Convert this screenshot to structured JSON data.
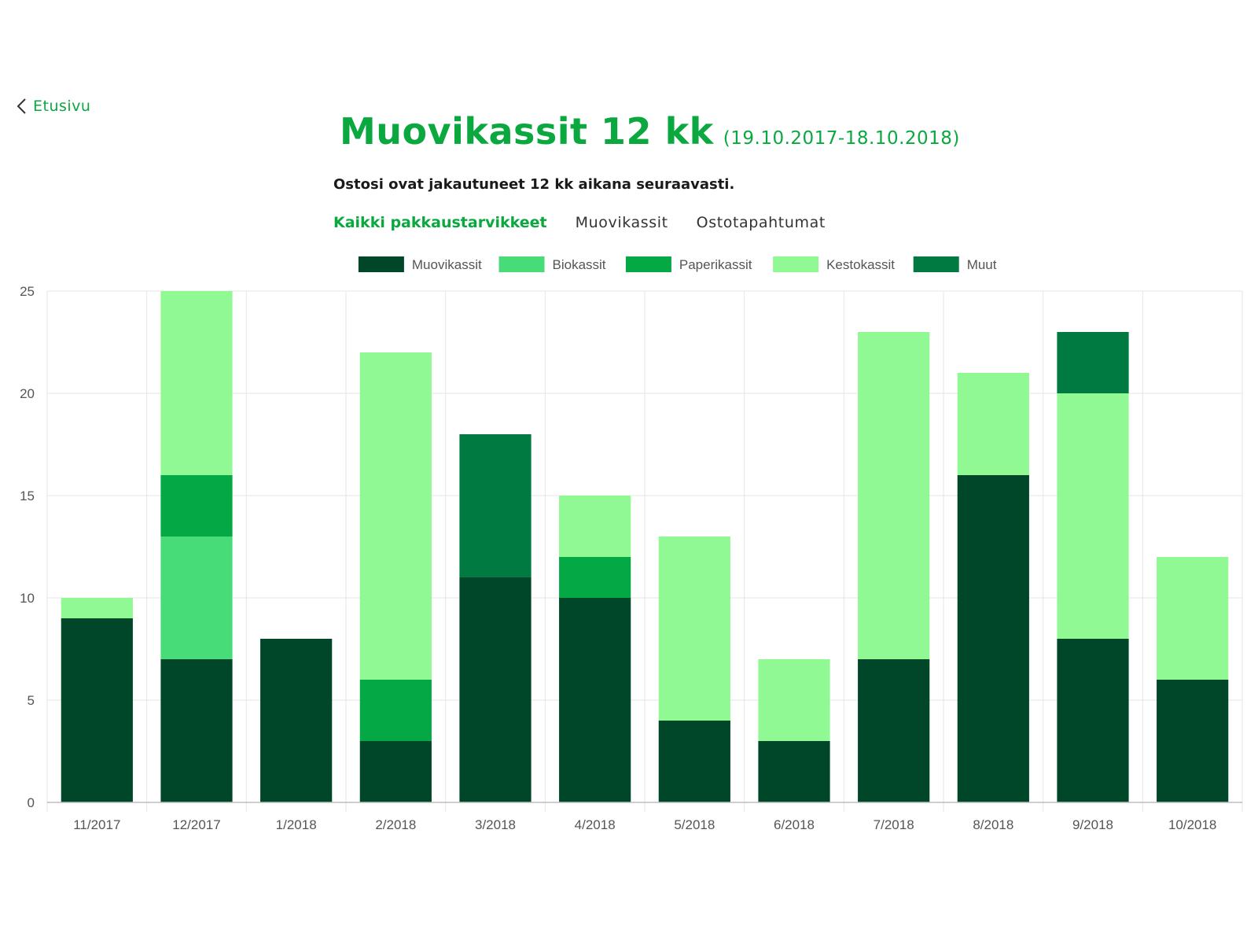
{
  "nav": {
    "back_label": "Etusivu"
  },
  "header": {
    "title": "Muovikassit 12 kk",
    "date_range": "(19.10.2017-18.10.2018)",
    "subtitle": "Ostosi ovat jakautuneet 12 kk aikana seuraavasti."
  },
  "tabs": [
    {
      "label": "Kaikki pakkaustarvikkeet",
      "active": true
    },
    {
      "label": "Muovikassit",
      "active": false
    },
    {
      "label": "Ostotapahtumat",
      "active": false
    }
  ],
  "chart_data": {
    "type": "bar",
    "stacked": true,
    "categories": [
      "11/2017",
      "12/2017",
      "1/2018",
      "2/2018",
      "3/2018",
      "4/2018",
      "5/2018",
      "6/2018",
      "7/2018",
      "8/2018",
      "9/2018",
      "10/2018"
    ],
    "series": [
      {
        "name": "Muovikassit",
        "color": "#00472a",
        "values": [
          9,
          7,
          8,
          3,
          11,
          10,
          4,
          3,
          7,
          16,
          8,
          6
        ]
      },
      {
        "name": "Biokassit",
        "color": "#48dc78",
        "values": [
          0,
          6,
          0,
          0,
          0,
          0,
          0,
          0,
          0,
          0,
          0,
          0
        ]
      },
      {
        "name": "Paperikassit",
        "color": "#04a844",
        "values": [
          0,
          3,
          0,
          3,
          0,
          2,
          0,
          0,
          0,
          0,
          0,
          0
        ]
      },
      {
        "name": "Kestokassit",
        "color": "#91f994",
        "values": [
          1,
          9,
          0,
          16,
          0,
          3,
          9,
          4,
          16,
          5,
          12,
          6
        ]
      },
      {
        "name": "Muut",
        "color": "#007a40",
        "values": [
          0,
          0,
          0,
          0,
          7,
          0,
          0,
          0,
          0,
          0,
          3,
          0
        ]
      }
    ],
    "ylim": [
      0,
      25
    ],
    "yticks": [
      0,
      5,
      10,
      15,
      20,
      25
    ],
    "grid": true,
    "legend_position": "top-center"
  }
}
